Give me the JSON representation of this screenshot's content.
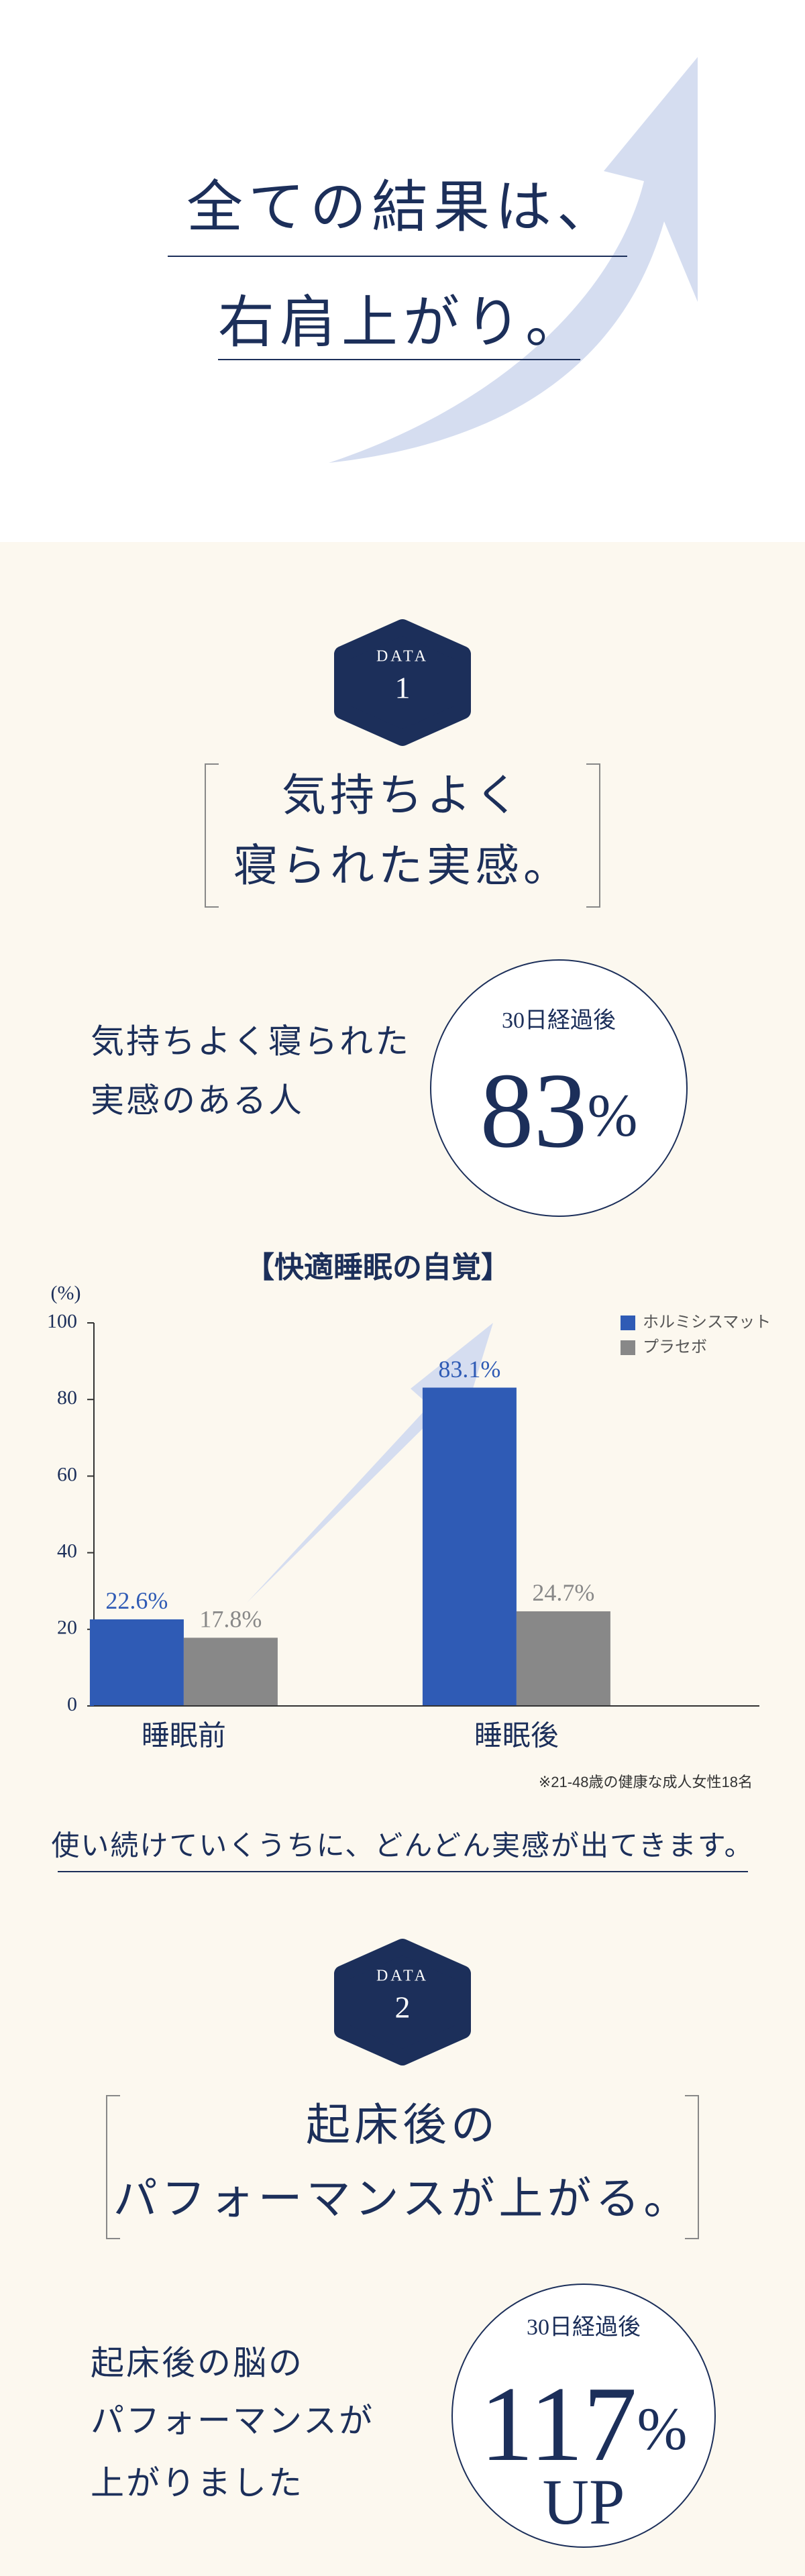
{
  "hero": {
    "lines": [
      "全ての結果は、",
      "右肩上がり。"
    ]
  },
  "data1": {
    "badge_label": "DATA",
    "badge_number": "1",
    "heading": [
      "気持ちよく",
      "寝られた実感。"
    ],
    "description": [
      "気持ちよく寝られた",
      "実感のある人"
    ],
    "stat_caption": "30日経過後",
    "stat_value": 83,
    "stat_unit": "%"
  },
  "chart_data": {
    "type": "bar",
    "title": "【快適睡眠の自覚】",
    "y_label": "(%)",
    "categories": [
      "睡眠前",
      "睡眠後"
    ],
    "series": [
      {
        "name": "ホルミシスマット",
        "color": "#2f5bb5",
        "values": [
          22.6,
          83.1
        ],
        "value_labels": [
          "22.6%",
          "83.1%"
        ]
      },
      {
        "name": "プラセボ",
        "color": "#888888",
        "values": [
          17.8,
          24.7
        ],
        "value_labels": [
          "17.8%",
          "24.7%"
        ]
      }
    ],
    "ylim": [
      0,
      100
    ],
    "yticks": [
      0,
      20,
      40,
      60,
      80,
      100
    ],
    "note": "※21-48歳の健康な成人女性18名"
  },
  "summary": "使い続けていくうちに、どんどん実感が出てきます。",
  "data2": {
    "badge_label": "DATA",
    "badge_number": "2",
    "heading": [
      "起床後の",
      "パフォーマンスが上がる。"
    ],
    "description": [
      "起床後の脳の",
      "パフォーマンスが",
      "上がりました"
    ],
    "stat_caption": "30日経過後",
    "stat_value": 117,
    "stat_unit": "%",
    "stat_suffix": "UP"
  }
}
